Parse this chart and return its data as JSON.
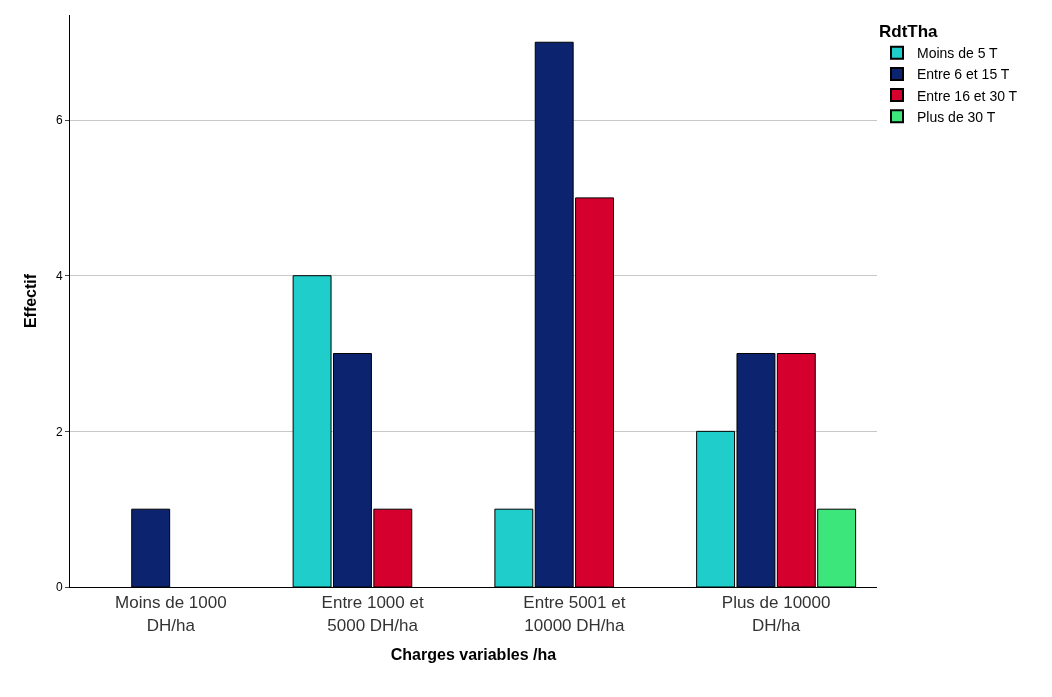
{
  "chart_data": {
    "type": "bar",
    "xlabel": "Charges variables /ha",
    "ylabel": "Effectif",
    "legend_title": "RdtTha",
    "categories": [
      "Moins de 1000 DH/ha",
      "Entre 1000 et 5000 DH/ha",
      "Entre 5001 et 10000 DH/ha",
      "Plus de 10000 DH/ha"
    ],
    "series": [
      {
        "name": "Moins de 5 T",
        "color": "#1fcecb",
        "values": [
          null,
          4,
          1,
          2
        ]
      },
      {
        "name": "Entre 6 et 15 T",
        "color": "#0c2470",
        "values": [
          1,
          3,
          7,
          3
        ]
      },
      {
        "name": "Entre 16 et 30 T",
        "color": "#d6002e",
        "values": [
          null,
          1,
          5,
          3
        ]
      },
      {
        "name": "Plus de 30 T",
        "color": "#3de67a",
        "values": [
          null,
          null,
          null,
          1
        ]
      }
    ],
    "ylim": [
      0,
      7.35
    ],
    "yticks": [
      0,
      2,
      4,
      6
    ],
    "grid": "y",
    "legend": "top right"
  }
}
